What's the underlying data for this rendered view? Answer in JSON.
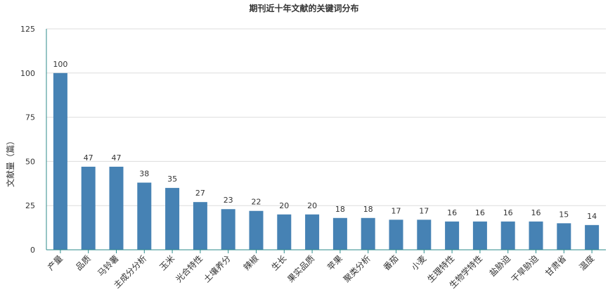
{
  "chart_data": {
    "type": "bar",
    "title": "期刊近十年文献的关键词分布",
    "xlabel": "",
    "ylabel": "文献量（篇）",
    "ylim": [
      0,
      125
    ],
    "yticks": [
      0,
      25,
      50,
      75,
      100,
      125
    ],
    "grid": true,
    "legend": "none",
    "bar_color": "#4682b4",
    "categories": [
      "产量",
      "品质",
      "马铃薯",
      "主成分分析",
      "玉米",
      "光合特性",
      "土壤养分",
      "辣椒",
      "生长",
      "果实品质",
      "苹果",
      "聚类分析",
      "番茄",
      "小麦",
      "生理特性",
      "生物学特性",
      "盐胁迫",
      "干旱胁迫",
      "甘肃省",
      "温度"
    ],
    "values": [
      100,
      47,
      47,
      38,
      35,
      27,
      23,
      22,
      20,
      20,
      18,
      18,
      17,
      17,
      16,
      16,
      16,
      16,
      15,
      14
    ]
  }
}
